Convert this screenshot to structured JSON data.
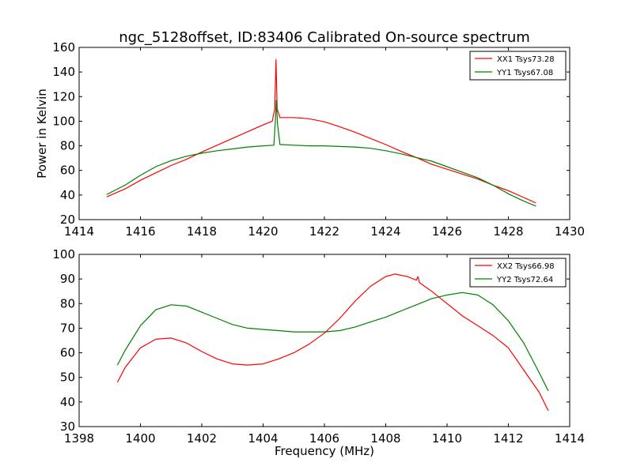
{
  "chart_data": [
    {
      "type": "line",
      "title": "ngc_5128offset, ID:83406 Calibrated On-source spectrum",
      "xlabel": "",
      "ylabel": "Power in Kelvin",
      "xlim": [
        1414,
        1430
      ],
      "ylim": [
        20,
        160
      ],
      "xticks": [
        1414,
        1416,
        1418,
        1420,
        1422,
        1424,
        1426,
        1428,
        1430
      ],
      "yticks": [
        20,
        40,
        60,
        80,
        100,
        120,
        140,
        160
      ],
      "grid": false,
      "legend": "top-right",
      "series": [
        {
          "name": "XX1 Tsys73.28",
          "color": "#ff0000",
          "points": [
            [
              1414.9,
              38.5
            ],
            [
              1415.5,
              45
            ],
            [
              1416,
              52
            ],
            [
              1416.5,
              58
            ],
            [
              1417,
              64
            ],
            [
              1417.5,
              69
            ],
            [
              1418,
              75
            ],
            [
              1418.5,
              80.5
            ],
            [
              1419,
              86
            ],
            [
              1419.5,
              91.5
            ],
            [
              1420,
              97
            ],
            [
              1420.3,
              100
            ],
            [
              1420.38,
              110
            ],
            [
              1420.42,
              150
            ],
            [
              1420.46,
              110
            ],
            [
              1420.55,
              103
            ],
            [
              1421,
              103
            ],
            [
              1421.5,
              102
            ],
            [
              1422,
              99.5
            ],
            [
              1422.5,
              95.5
            ],
            [
              1423,
              91
            ],
            [
              1423.5,
              86
            ],
            [
              1424,
              81
            ],
            [
              1424.5,
              75.5
            ],
            [
              1425,
              70.5
            ],
            [
              1425.5,
              65
            ],
            [
              1426,
              61
            ],
            [
              1426.5,
              57
            ],
            [
              1427,
              53
            ],
            [
              1427.5,
              48
            ],
            [
              1428,
              43.5
            ],
            [
              1428.5,
              38
            ],
            [
              1428.9,
              33.5
            ]
          ]
        },
        {
          "name": "YY1 Tsys67.08",
          "color": "#008000",
          "points": [
            [
              1414.9,
              40.5
            ],
            [
              1415.5,
              48
            ],
            [
              1416,
              56
            ],
            [
              1416.5,
              63
            ],
            [
              1417,
              68
            ],
            [
              1417.5,
              71.5
            ],
            [
              1418,
              74
            ],
            [
              1418.5,
              76
            ],
            [
              1419,
              77.5
            ],
            [
              1419.5,
              79
            ],
            [
              1420,
              80
            ],
            [
              1420.35,
              80.5
            ],
            [
              1420.4,
              100
            ],
            [
              1420.43,
              117
            ],
            [
              1420.47,
              98
            ],
            [
              1420.55,
              81
            ],
            [
              1421,
              80.5
            ],
            [
              1421.5,
              80
            ],
            [
              1422,
              80
            ],
            [
              1422.5,
              79.5
            ],
            [
              1423,
              79
            ],
            [
              1423.5,
              78
            ],
            [
              1424,
              76
            ],
            [
              1424.5,
              73.5
            ],
            [
              1425,
              70.5
            ],
            [
              1425.5,
              67.5
            ],
            [
              1426,
              63
            ],
            [
              1426.5,
              58.5
            ],
            [
              1427,
              54
            ],
            [
              1427.5,
              48
            ],
            [
              1428,
              41
            ],
            [
              1428.5,
              35
            ],
            [
              1428.9,
              31
            ]
          ]
        }
      ]
    },
    {
      "type": "line",
      "title": "",
      "xlabel": "Frequency (MHz)",
      "ylabel": "",
      "xlim": [
        1398,
        1414
      ],
      "ylim": [
        30,
        100
      ],
      "xticks": [
        1398,
        1400,
        1402,
        1404,
        1406,
        1408,
        1410,
        1412,
        1414
      ],
      "yticks": [
        30,
        40,
        50,
        60,
        70,
        80,
        90,
        100
      ],
      "grid": false,
      "legend": "top-right",
      "series": [
        {
          "name": "XX2 Tsys66.98",
          "color": "#ff0000",
          "points": [
            [
              1399.25,
              48
            ],
            [
              1399.5,
              54
            ],
            [
              1400,
              62
            ],
            [
              1400.5,
              65.5
            ],
            [
              1401,
              66
            ],
            [
              1401.5,
              64
            ],
            [
              1402,
              60.5
            ],
            [
              1402.5,
              57.5
            ],
            [
              1403,
              55.5
            ],
            [
              1403.5,
              55
            ],
            [
              1404,
              55.5
            ],
            [
              1404.5,
              57.5
            ],
            [
              1405,
              60
            ],
            [
              1405.5,
              63.5
            ],
            [
              1406,
              68
            ],
            [
              1406.5,
              74
            ],
            [
              1407,
              81
            ],
            [
              1407.5,
              87
            ],
            [
              1408,
              91
            ],
            [
              1408.3,
              92
            ],
            [
              1408.7,
              91
            ],
            [
              1409,
              89.5
            ],
            [
              1409.05,
              91
            ],
            [
              1409.1,
              88.5
            ],
            [
              1409.5,
              85
            ],
            [
              1410,
              80
            ],
            [
              1410.5,
              75
            ],
            [
              1411,
              71
            ],
            [
              1411.5,
              67
            ],
            [
              1412,
              62
            ],
            [
              1412.5,
              53
            ],
            [
              1413,
              44
            ],
            [
              1413.3,
              36.5
            ]
          ]
        },
        {
          "name": "YY2 Tsys72.64",
          "color": "#008000",
          "points": [
            [
              1399.25,
              55
            ],
            [
              1399.5,
              61
            ],
            [
              1400,
              71
            ],
            [
              1400.5,
              77.5
            ],
            [
              1401,
              79.5
            ],
            [
              1401.5,
              79
            ],
            [
              1402,
              76.5
            ],
            [
              1402.5,
              74
            ],
            [
              1403,
              71.5
            ],
            [
              1403.5,
              70
            ],
            [
              1404,
              69.5
            ],
            [
              1404.5,
              69
            ],
            [
              1405,
              68.5
            ],
            [
              1405.5,
              68.5
            ],
            [
              1406,
              68.5
            ],
            [
              1406.5,
              69
            ],
            [
              1407,
              70.5
            ],
            [
              1407.5,
              72.5
            ],
            [
              1408,
              74.5
            ],
            [
              1408.5,
              77
            ],
            [
              1409,
              79.5
            ],
            [
              1409.5,
              82
            ],
            [
              1410,
              83.5
            ],
            [
              1410.5,
              84.5
            ],
            [
              1411,
              83.5
            ],
            [
              1411.5,
              79.5
            ],
            [
              1412,
              73
            ],
            [
              1412.5,
              64
            ],
            [
              1413,
              52
            ],
            [
              1413.3,
              44.5
            ]
          ]
        }
      ]
    }
  ]
}
